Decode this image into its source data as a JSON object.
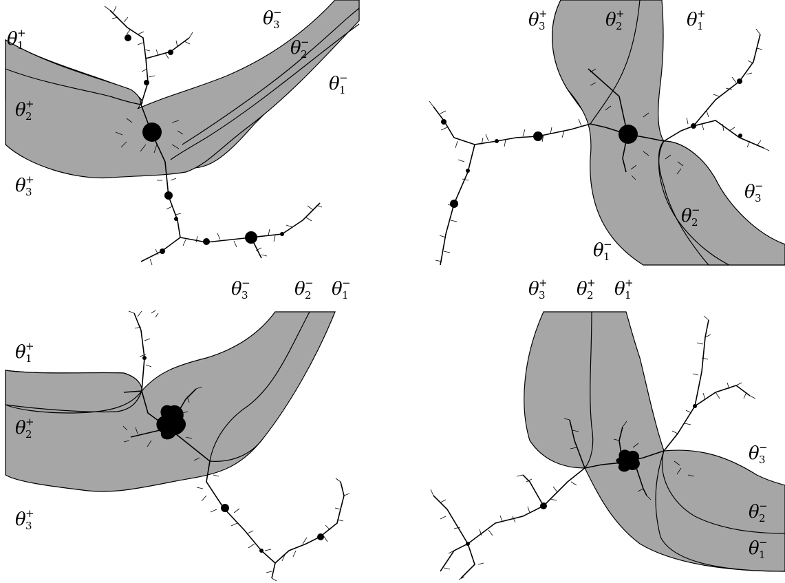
{
  "theta": "θ",
  "panels": [
    {
      "name": "panel-top-left",
      "labels": [
        {
          "num": "1",
          "sign": "+"
        },
        {
          "num": "2",
          "sign": "+"
        },
        {
          "num": "3",
          "sign": "+"
        },
        {
          "num": "3",
          "sign": "−"
        },
        {
          "num": "2",
          "sign": "−"
        },
        {
          "num": "1",
          "sign": "−"
        }
      ]
    },
    {
      "name": "panel-top-right",
      "labels": [
        {
          "num": "3",
          "sign": "+"
        },
        {
          "num": "2",
          "sign": "+"
        },
        {
          "num": "1",
          "sign": "+"
        },
        {
          "num": "3",
          "sign": "−"
        },
        {
          "num": "2",
          "sign": "−"
        },
        {
          "num": "1",
          "sign": "−"
        }
      ]
    },
    {
      "name": "panel-bottom-left",
      "labels": [
        {
          "num": "3",
          "sign": "−"
        },
        {
          "num": "2",
          "sign": "−"
        },
        {
          "num": "1",
          "sign": "−"
        },
        {
          "num": "1",
          "sign": "+"
        },
        {
          "num": "2",
          "sign": "+"
        },
        {
          "num": "3",
          "sign": "+"
        }
      ]
    },
    {
      "name": "panel-bottom-right",
      "labels": [
        {
          "num": "3",
          "sign": "+"
        },
        {
          "num": "2",
          "sign": "+"
        },
        {
          "num": "1",
          "sign": "+"
        },
        {
          "num": "3",
          "sign": "−"
        },
        {
          "num": "2",
          "sign": "−"
        },
        {
          "num": "1",
          "sign": "−"
        }
      ]
    }
  ]
}
